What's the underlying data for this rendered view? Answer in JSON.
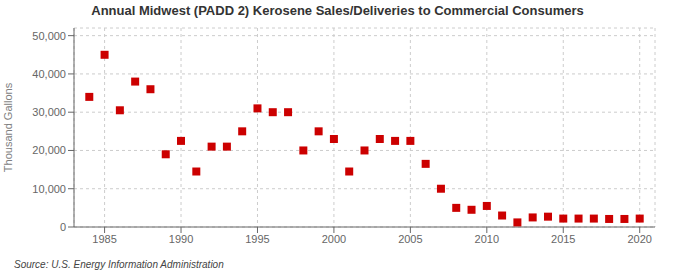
{
  "chart_data": {
    "type": "scatter",
    "title": "Annual Midwest (PADD 2) Kerosene Sales/Deliveries to Commercial Consumers",
    "ylabel": "Thousand Gallons",
    "source": "Source: U.S. Energy Information Administration",
    "x": [
      1984,
      1985,
      1986,
      1987,
      1988,
      1989,
      1990,
      1991,
      1992,
      1993,
      1994,
      1995,
      1996,
      1997,
      1998,
      1999,
      2000,
      2001,
      2002,
      2003,
      2004,
      2005,
      2006,
      2007,
      2008,
      2009,
      2010,
      2011,
      2012,
      2013,
      2014,
      2015,
      2016,
      2017,
      2018,
      2019,
      2020
    ],
    "values": [
      34000,
      45000,
      30500,
      38000,
      36000,
      19000,
      22500,
      14500,
      21000,
      21000,
      25000,
      31000,
      30000,
      30000,
      20000,
      25000,
      23000,
      14500,
      20000,
      23000,
      22500,
      22500,
      16500,
      10000,
      5000,
      4500,
      5500,
      3000,
      1200,
      2500,
      2700,
      2200,
      2200,
      2200,
      2100,
      2100,
      2200
    ],
    "color": "#cc0000",
    "marker": "square",
    "xlim": [
      1983,
      2021
    ],
    "xticks": [
      1985,
      1990,
      1995,
      2000,
      2005,
      2010,
      2015,
      2020
    ],
    "ylim": [
      0,
      52000
    ],
    "yticks": [
      0,
      {
        "value": 10000,
        "label": "10,000"
      },
      {
        "value": 20000,
        "label": "20,000"
      },
      {
        "value": 30000,
        "label": "30,000"
      },
      {
        "value": 40000,
        "label": "40,000"
      },
      {
        "value": 50000,
        "label": "50,000"
      }
    ],
    "grid": true
  }
}
